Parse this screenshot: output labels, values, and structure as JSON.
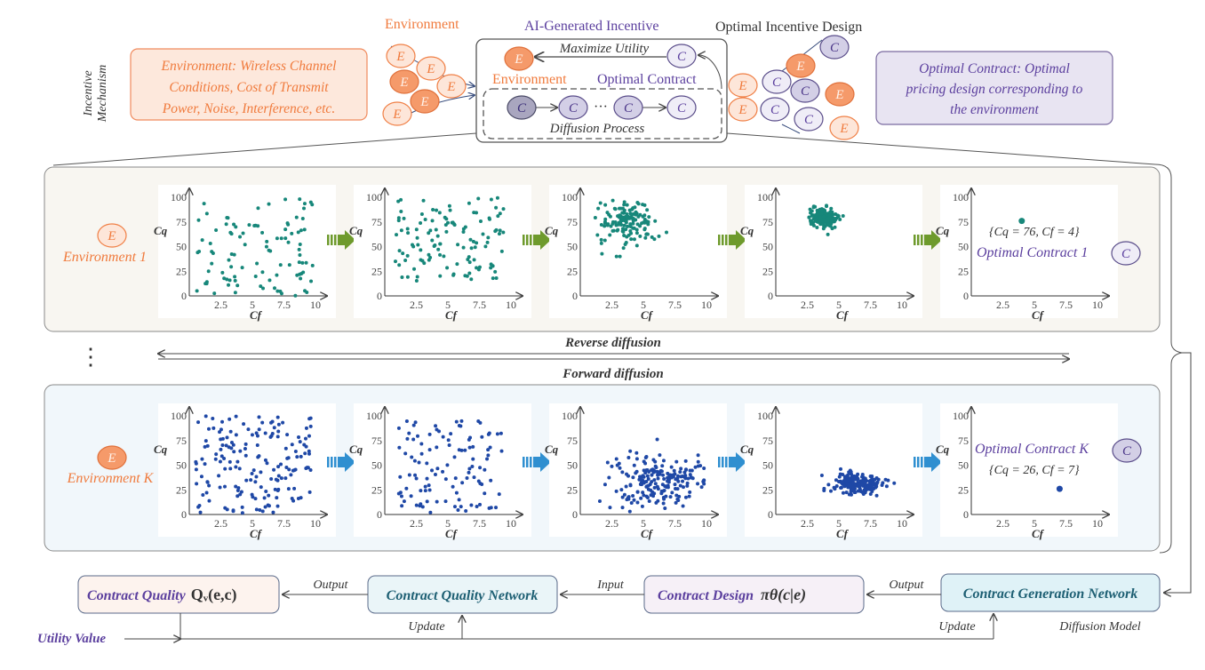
{
  "header": {
    "side_label_line1": "Incentive",
    "side_label_line2": "Mechanism",
    "environment_title": "Environment",
    "ai_title": "AI-Generated Incentive",
    "optimal_title": "Optimal Incentive Design",
    "env_box_lines": [
      "Environment: Wireless Channel",
      "Conditions, Cost of Transmit",
      "Power, Noise, Interference, etc."
    ],
    "contract_box_lines": [
      "Optimal Contract: Optimal",
      "pricing design corresponding to",
      "the environment"
    ],
    "maximize_utility": "Maximize Utility",
    "inner_environment": "Environment",
    "inner_optimal_contract": "Optimal Contract",
    "diffusion_process": "Diffusion Process",
    "ellipsis": "···"
  },
  "nodes": {
    "env_letter": "E",
    "contract_letter": "C"
  },
  "rows": [
    {
      "env_label": "Environment 1",
      "contract_label": "Optimal Contract 1",
      "result_label": "{Cq = 76, Cf = 4}",
      "dot_color": "#17877a",
      "arrow_color": "#6e9a2c",
      "stages": [
        {
          "kind": "uniform",
          "n": 100,
          "cf": [
            0.5,
            9.8
          ],
          "cq": [
            0,
            100
          ]
        },
        {
          "kind": "uniform",
          "n": 120,
          "cf": [
            0.8,
            9.5
          ],
          "cq": [
            15,
            100
          ]
        },
        {
          "kind": "gauss",
          "n": 140,
          "cf_mean": 3.8,
          "cf_sd": 1.1,
          "cq_mean": 74,
          "cq_sd": 11
        },
        {
          "kind": "gauss",
          "n": 150,
          "cf_mean": 3.7,
          "cf_sd": 0.6,
          "cq_mean": 79,
          "cq_sd": 5
        },
        {
          "kind": "point",
          "cf": 4,
          "cq": 76
        }
      ]
    },
    {
      "env_label": "Environment K",
      "contract_label": "Optimal Contract K",
      "result_label": "{Cq = 26, Cf = 7}",
      "dot_color": "#1f48a6",
      "arrow_color": "#2f8fd0",
      "stages": [
        {
          "kind": "uniform",
          "n": 170,
          "cf": [
            0.5,
            9.8
          ],
          "cq": [
            0,
            100
          ]
        },
        {
          "kind": "uniform",
          "n": 110,
          "cf": [
            1,
            9.5
          ],
          "cq": [
            0,
            95
          ]
        },
        {
          "kind": "gauss",
          "n": 200,
          "cf_mean": 6,
          "cf_sd": 1.8,
          "cq_mean": 35,
          "cq_sd": 14
        },
        {
          "kind": "gauss",
          "n": 180,
          "cf_mean": 6.5,
          "cf_sd": 1.0,
          "cq_mean": 31,
          "cq_sd": 6
        },
        {
          "kind": "point",
          "cf": 7,
          "cq": 26
        }
      ]
    }
  ],
  "axes": {
    "xlabel": "Cf",
    "ylabel": "Cq",
    "xticks": [
      "2.5",
      "5",
      "7.5",
      "10"
    ],
    "xtick_values": [
      2.5,
      5,
      7.5,
      10
    ],
    "yticks": [
      "0",
      "25",
      "50",
      "75",
      "100"
    ],
    "ytick_values": [
      0,
      25,
      50,
      75,
      100
    ]
  },
  "middle": {
    "vdots": "⋮",
    "reverse": "Reverse diffusion",
    "forward": "Forward diffusion"
  },
  "bottom": {
    "contract_quality": "Contract Quality",
    "contract_quality_math": "Qᵥ(e,c)",
    "quality_network": "Contract Quality Network",
    "contract_design": "Contract Design",
    "contract_design_math": "πθ(c|e)",
    "generation_network": "Contract Generation Network",
    "output1": "Output",
    "input": "Input",
    "output2": "Output",
    "update1": "Update",
    "update2": "Update",
    "diffusion_model": "Diffusion Model",
    "utility_value": "Utility Value"
  }
}
